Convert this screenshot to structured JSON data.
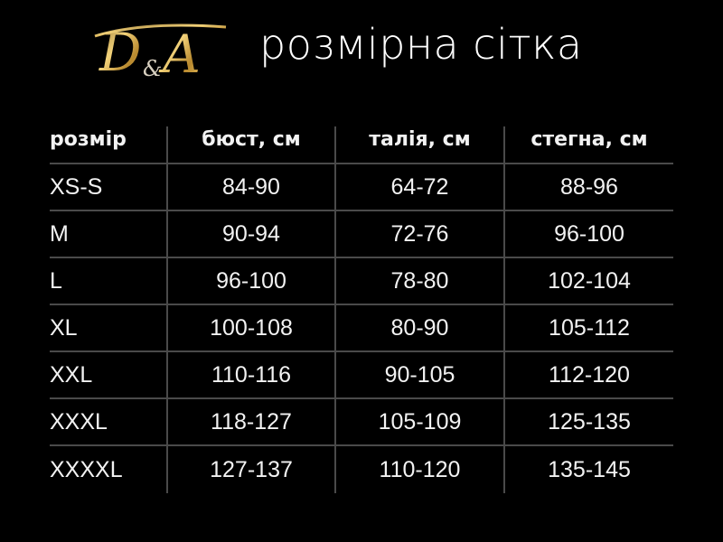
{
  "logo": {
    "text": "D&A",
    "color": "#c9a24a"
  },
  "title": "розмірна сітка",
  "table": {
    "headers": [
      "розмір",
      "бюст, см",
      "талія, см",
      "стегна, см"
    ],
    "rows": [
      [
        "XS-S",
        "84-90",
        "64-72",
        "88-96"
      ],
      [
        "M",
        "90-94",
        "72-76",
        "96-100"
      ],
      [
        "L",
        "96-100",
        "78-80",
        "102-104"
      ],
      [
        "XL",
        "100-108",
        "80-90",
        "105-112"
      ],
      [
        "XXL",
        "110-116",
        "90-105",
        "112-120"
      ],
      [
        "XXXL",
        "118-127",
        "105-109",
        "125-135"
      ],
      [
        "XXXXL",
        "127-137",
        "110-120",
        "135-145"
      ]
    ]
  }
}
